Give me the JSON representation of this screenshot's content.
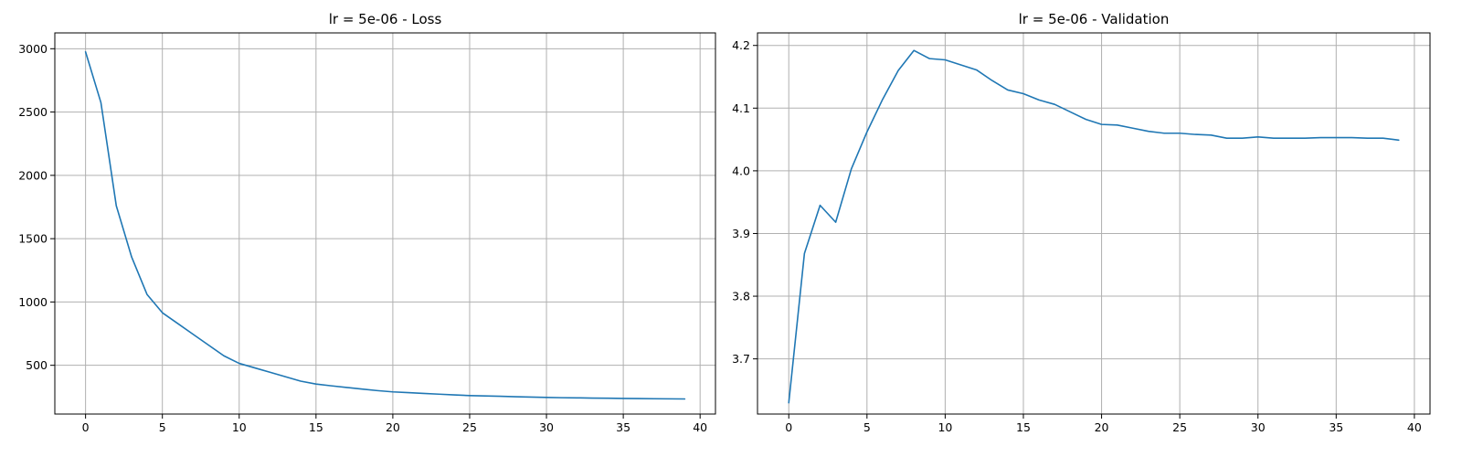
{
  "chart_data": [
    {
      "type": "line",
      "title": "lr = 5e-06 - Loss",
      "xlabel": "",
      "ylabel": "",
      "xlim": [
        -2,
        41
      ],
      "ylim": [
        115,
        3125
      ],
      "xticks": [
        0,
        5,
        10,
        15,
        20,
        25,
        30,
        35,
        40
      ],
      "xtick_labels": [
        "0",
        "5",
        "10",
        "15",
        "20",
        "25",
        "30",
        "35",
        "40"
      ],
      "yticks": [
        500,
        1000,
        1500,
        2000,
        2500,
        3000
      ],
      "ytick_labels": [
        "500",
        "1000",
        "1500",
        "2000",
        "2500",
        "3000"
      ],
      "grid": true,
      "series": [
        {
          "color": "#1f77b4",
          "x": [
            0,
            1,
            2,
            3,
            4,
            5,
            6,
            7,
            8,
            9,
            10,
            11,
            12,
            13,
            14,
            15,
            16,
            17,
            18,
            19,
            20,
            21,
            22,
            23,
            24,
            25,
            26,
            27,
            28,
            29,
            30,
            31,
            32,
            33,
            34,
            35,
            36,
            37,
            38,
            39
          ],
          "y": [
            2975,
            2575,
            1760,
            1355,
            1060,
            915,
            830,
            745,
            660,
            575,
            515,
            480,
            445,
            410,
            375,
            352,
            338,
            325,
            312,
            300,
            290,
            284,
            278,
            272,
            266,
            261,
            258,
            255,
            252,
            249,
            246,
            244,
            243,
            241,
            240,
            238,
            237,
            236,
            235,
            234
          ]
        }
      ]
    },
    {
      "type": "line",
      "title": "lr = 5e-06 - Validation",
      "xlabel": "",
      "ylabel": "",
      "xlim": [
        -2,
        41
      ],
      "ylim": [
        3.612,
        4.22
      ],
      "xticks": [
        0,
        5,
        10,
        15,
        20,
        25,
        30,
        35,
        40
      ],
      "xtick_labels": [
        "0",
        "5",
        "10",
        "15",
        "20",
        "25",
        "30",
        "35",
        "40"
      ],
      "yticks": [
        3.7,
        3.8,
        3.9,
        4.0,
        4.1,
        4.2
      ],
      "ytick_labels": [
        "3.7",
        "3.8",
        "3.9",
        "4.0",
        "4.1",
        "4.2"
      ],
      "grid": true,
      "series": [
        {
          "color": "#1f77b4",
          "x": [
            0,
            1,
            2,
            3,
            4,
            5,
            6,
            7,
            8,
            9,
            10,
            11,
            12,
            13,
            14,
            15,
            16,
            17,
            18,
            19,
            20,
            21,
            22,
            23,
            24,
            25,
            26,
            27,
            28,
            29,
            30,
            31,
            32,
            33,
            34,
            35,
            36,
            37,
            38,
            39
          ],
          "y": [
            3.63,
            3.868,
            3.945,
            3.918,
            4.003,
            4.062,
            4.114,
            4.16,
            4.192,
            4.179,
            4.177,
            4.169,
            4.161,
            4.144,
            4.129,
            4.123,
            4.113,
            4.106,
            4.094,
            4.082,
            4.074,
            4.073,
            4.068,
            4.063,
            4.06,
            4.06,
            4.058,
            4.057,
            4.052,
            4.052,
            4.054,
            4.052,
            4.052,
            4.052,
            4.053,
            4.053,
            4.053,
            4.052,
            4.052,
            4.049
          ]
        }
      ]
    }
  ]
}
